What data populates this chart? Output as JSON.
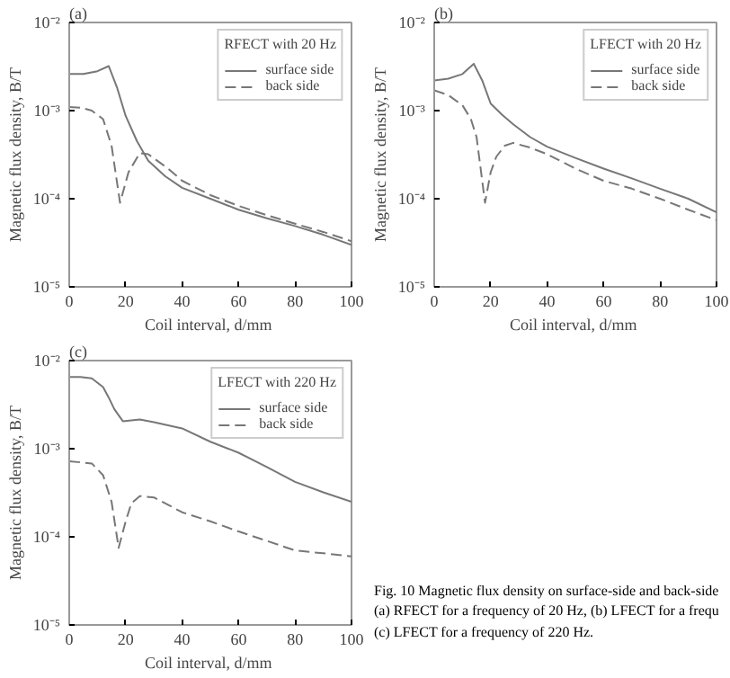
{
  "chart_data": [
    {
      "type": "line",
      "title": "(a)",
      "legend_title": "RFECT with 20 Hz",
      "xlabel": "Coil interval,  d/mm",
      "ylabel": "Magnetic flux density, B/T",
      "log": true,
      "grid": false,
      "legend": "top right",
      "xlim": [
        0,
        100
      ],
      "ylim": [
        1e-05,
        0.01
      ],
      "xticks": [
        0,
        20,
        40,
        60,
        80,
        100
      ],
      "yticks": [
        {
          "value": 1e-05,
          "label": "10⁻⁵"
        },
        {
          "value": 0.0001,
          "label": "10⁻⁴"
        },
        {
          "value": 0.001,
          "label": "10⁻³"
        },
        {
          "value": 0.01,
          "label": "10⁻²"
        }
      ],
      "series": [
        {
          "name": "surface side",
          "color": "#777777",
          "line_style": "solid",
          "x": [
            0,
            5,
            10,
            14,
            17,
            20,
            24,
            28,
            34,
            40,
            50,
            60,
            70,
            80,
            90,
            100
          ],
          "values": [
            0.0026,
            0.0026,
            0.0028,
            0.0032,
            0.0018,
            0.00087,
            0.00045,
            0.00027,
            0.00018,
            0.000133,
            0.0001,
            7.5e-05,
            6e-05,
            4.9e-05,
            3.9e-05,
            3e-05
          ]
        },
        {
          "name": "back side",
          "color": "#777777",
          "line_style": "dashed",
          "x": [
            0,
            4,
            8,
            12,
            15,
            18,
            21,
            25,
            28,
            35,
            40,
            50,
            60,
            70,
            80,
            90,
            100
          ],
          "values": [
            0.0011,
            0.00108,
            0.001,
            0.0008,
            0.0004,
            9e-05,
            0.0002,
            0.00033,
            0.00032,
            0.00022,
            0.00016,
            0.00011,
            8.3e-05,
            6.5e-05,
            5.2e-05,
            4.2e-05,
            3.3e-05
          ]
        }
      ]
    },
    {
      "type": "line",
      "title": "(b)",
      "legend_title": "LFECT with 20 Hz",
      "xlabel": "Coil interval,  d/mm",
      "ylabel": "Magnetic flux density, B/T",
      "log": true,
      "grid": false,
      "legend": "top right",
      "xlim": [
        0,
        100
      ],
      "ylim": [
        1e-05,
        0.01
      ],
      "xticks": [
        0,
        20,
        40,
        60,
        80,
        100
      ],
      "yticks": [
        {
          "value": 1e-05,
          "label": "10⁻⁵"
        },
        {
          "value": 0.0001,
          "label": "10⁻⁴"
        },
        {
          "value": 0.001,
          "label": "10⁻³"
        },
        {
          "value": 0.01,
          "label": "10⁻²"
        }
      ],
      "series": [
        {
          "name": "surface side",
          "color": "#777777",
          "line_style": "solid",
          "x": [
            0,
            5,
            10,
            14,
            17,
            20,
            24,
            28,
            34,
            40,
            50,
            60,
            70,
            80,
            90,
            100
          ],
          "values": [
            0.0022,
            0.0023,
            0.0026,
            0.0034,
            0.0022,
            0.0012,
            0.0009,
            0.0007,
            0.0005,
            0.00039,
            0.00029,
            0.00022,
            0.00017,
            0.00013,
            0.0001,
            7e-05
          ]
        },
        {
          "name": "back side",
          "color": "#777777",
          "line_style": "dashed",
          "x": [
            0,
            5,
            10,
            13,
            15,
            18,
            20,
            22,
            25,
            28,
            34,
            40,
            50,
            60,
            70,
            80,
            90,
            100
          ],
          "values": [
            0.0017,
            0.0015,
            0.00115,
            0.0008,
            0.0005,
            9e-05,
            0.0002,
            0.0003,
            0.0004,
            0.00043,
            0.00038,
            0.00032,
            0.00022,
            0.00016,
            0.00013,
            0.0001,
            7.5e-05,
            5.7e-05
          ]
        }
      ]
    },
    {
      "type": "line",
      "title": "(c)",
      "legend_title": "LFECT with 220 Hz",
      "xlabel": "Coil interval,  d/mm",
      "ylabel": "Magnetic flux density, B/T",
      "log": true,
      "grid": false,
      "legend": "top right",
      "xlim": [
        0,
        100
      ],
      "ylim": [
        1e-05,
        0.01
      ],
      "xticks": [
        0,
        20,
        40,
        60,
        80,
        100
      ],
      "yticks": [
        {
          "value": 1e-05,
          "label": "10⁻⁵"
        },
        {
          "value": 0.0001,
          "label": "10⁻⁴"
        },
        {
          "value": 0.001,
          "label": "10⁻³"
        },
        {
          "value": 0.01,
          "label": "10⁻²"
        }
      ],
      "annotations": [
        "Fig.  10    Magnetic flux density on surface-side and back-side",
        "(a) RFECT for a frequency of 20 Hz, (b) LFECT for a frequ",
        "(c) LFECT  for a  frequency  of 220 Hz."
      ],
      "series": [
        {
          "name": "surface side",
          "color": "#777777",
          "line_style": "solid",
          "x": [
            0,
            4,
            8,
            12,
            14,
            16,
            19,
            22,
            25,
            30,
            40,
            50,
            60,
            70,
            80,
            90,
            100
          ],
          "values": [
            0.0065,
            0.0065,
            0.0063,
            0.005,
            0.0038,
            0.0028,
            0.00205,
            0.0021,
            0.00215,
            0.002,
            0.0017,
            0.0012,
            0.0009,
            0.00062,
            0.00042,
            0.00032,
            0.00025
          ]
        },
        {
          "name": "back side",
          "color": "#777777",
          "line_style": "dashed",
          "x": [
            0,
            4,
            8,
            12,
            15,
            17.5,
            20,
            22,
            25,
            30,
            40,
            50,
            60,
            70,
            80,
            90,
            100
          ],
          "values": [
            0.00072,
            0.0007,
            0.00068,
            0.0005,
            0.00025,
            7.5e-05,
            0.00015,
            0.00024,
            0.00029,
            0.00028,
            0.00019,
            0.00015,
            0.000115,
            9e-05,
            7e-05,
            6.5e-05,
            6e-05
          ]
        }
      ]
    }
  ]
}
